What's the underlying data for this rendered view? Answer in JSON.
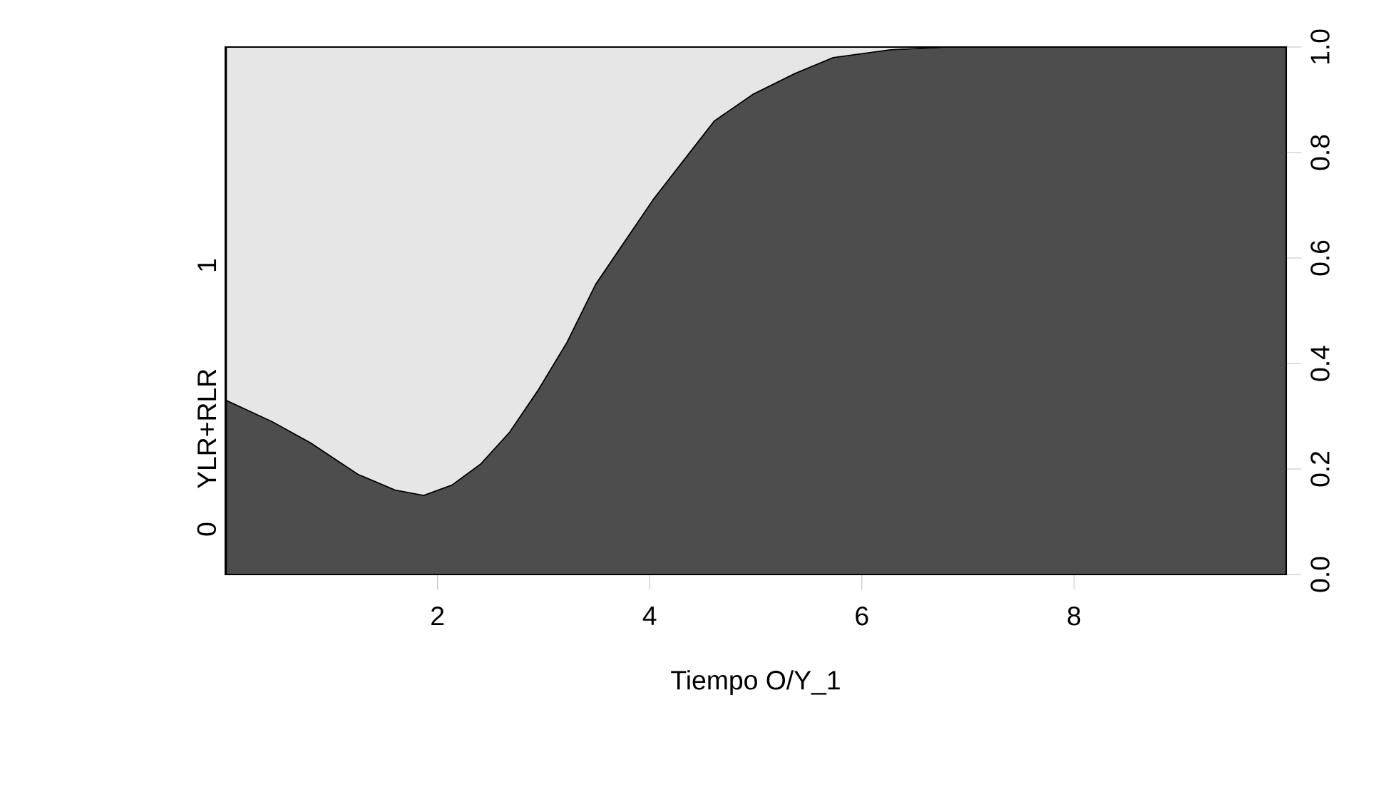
{
  "chart_data": {
    "type": "area",
    "stacked": true,
    "xlabel": "Tiempo O/Y_1",
    "ylabel": "YLR+RLR",
    "x": [
      0.01,
      0.44,
      0.8,
      1.25,
      1.6,
      1.87,
      2.14,
      2.41,
      2.68,
      2.95,
      3.22,
      3.49,
      3.76,
      4.03,
      4.3,
      4.61,
      4.97,
      5.37,
      5.73,
      6.27,
      6.8,
      10
    ],
    "series": [
      {
        "name": "0",
        "color": "#4d4d4d",
        "values": [
          0.33,
          0.29,
          0.25,
          0.19,
          0.16,
          0.15,
          0.17,
          0.21,
          0.27,
          0.35,
          0.44,
          0.55,
          0.63,
          0.71,
          0.78,
          0.86,
          0.91,
          0.95,
          0.98,
          0.995,
          1.0,
          1.0
        ]
      },
      {
        "name": "1",
        "color": "#e6e6e6",
        "values": [
          0.67,
          0.71,
          0.75,
          0.81,
          0.84,
          0.85,
          0.83,
          0.79,
          0.73,
          0.65,
          0.56,
          0.45,
          0.37,
          0.29,
          0.22,
          0.14,
          0.09,
          0.05,
          0.02,
          0.005,
          0.0,
          0.0
        ]
      }
    ],
    "xlim": [
      0,
      10
    ],
    "xticks": [
      2,
      4,
      6,
      8
    ],
    "ylim": [
      0,
      1
    ],
    "yticks": [
      {
        "value": 0,
        "label": "0.0"
      },
      {
        "value": 0.2,
        "label": "0.2"
      },
      {
        "value": 0.4,
        "label": "0.4"
      },
      {
        "value": 0.6,
        "label": "0.6"
      },
      {
        "value": 0.8,
        "label": "0.8"
      },
      {
        "value": 1,
        "label": "1.0"
      }
    ]
  }
}
